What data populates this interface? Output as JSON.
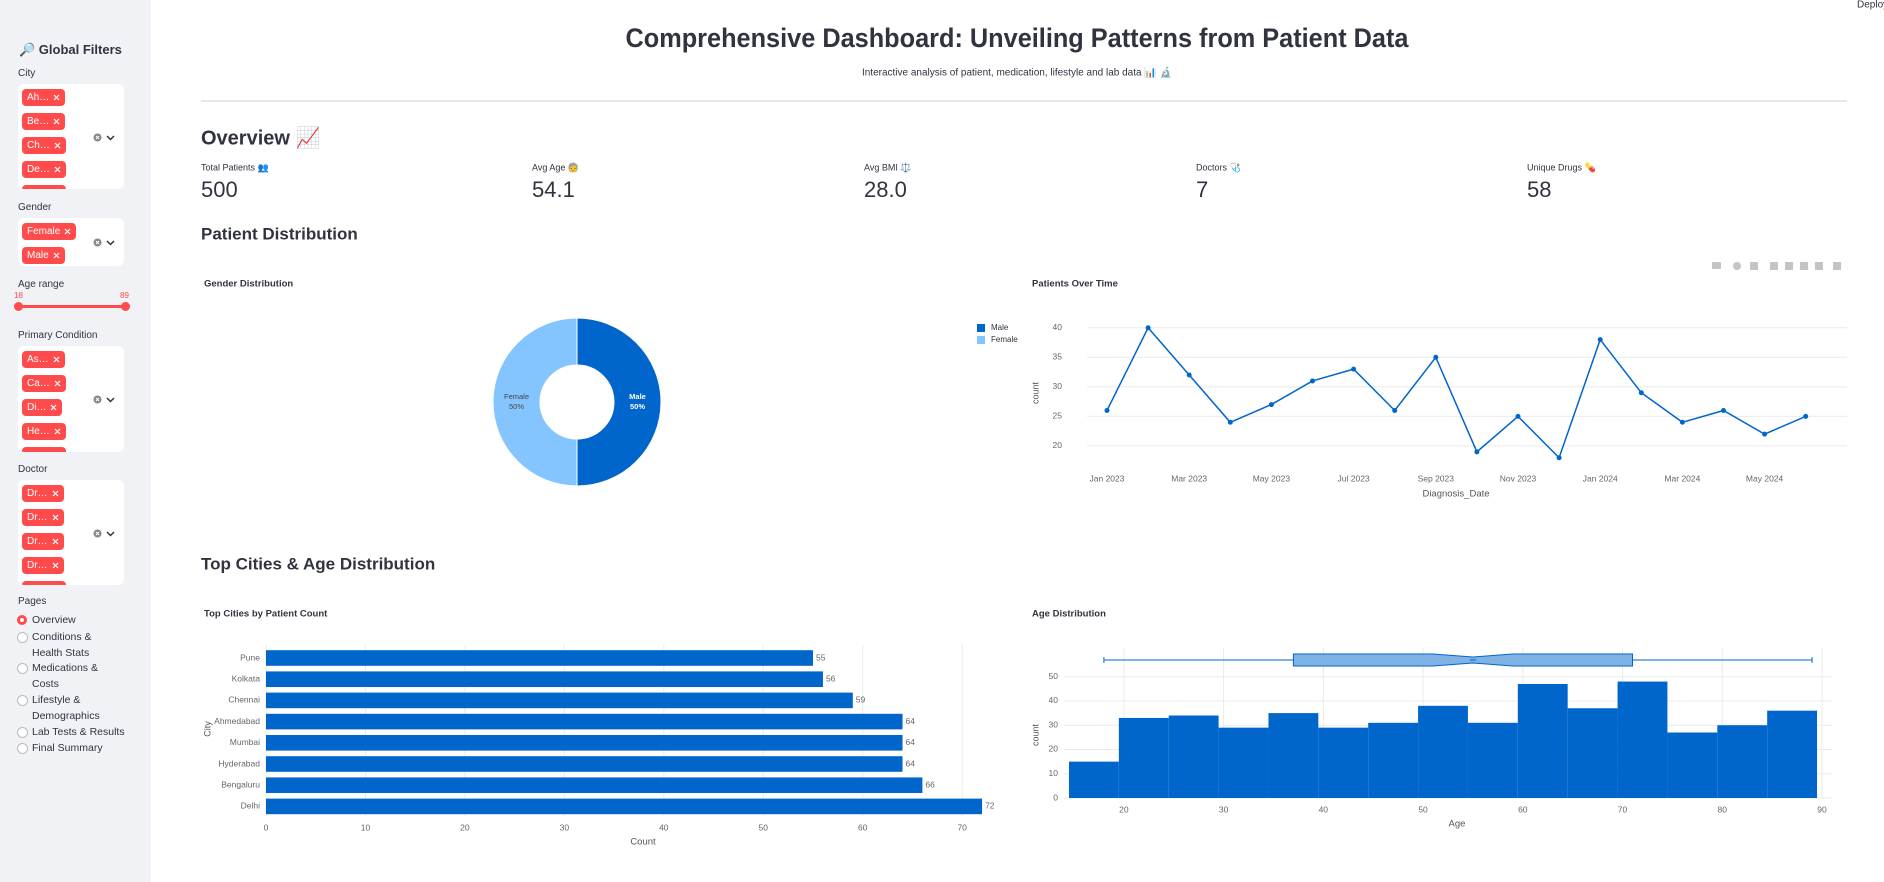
{
  "deploy": "Deploy",
  "sidebar": {
    "title": "🔎 Global Filters",
    "filters": [
      {
        "label": "City",
        "chips": [
          "Ah…",
          "Be…",
          "Ch…",
          "De…"
        ]
      },
      {
        "label": "Gender",
        "chips": [
          "Female",
          "Male"
        ]
      },
      {
        "label": "Primary Condition",
        "chips": [
          "As…",
          "Ca…",
          "Di…",
          "He…"
        ]
      },
      {
        "label": "Doctor",
        "chips": [
          "Dr…",
          "Dr…",
          "Dr…",
          "Dr…"
        ]
      }
    ],
    "age_range": {
      "label": "Age range",
      "min": 18,
      "max": 89
    },
    "pages": {
      "label": "Pages",
      "options": [
        "Overview",
        "Conditions & Health Stats",
        "Medications & Costs",
        "Lifestyle & Demographics",
        "Lab Tests & Results",
        "Final Summary"
      ],
      "selected": 0
    }
  },
  "header": {
    "title": "Comprehensive Dashboard: Unveiling Patterns from Patient Data",
    "subtitle": "Interactive analysis of patient, medication, lifestyle and lab data 📊 🔬"
  },
  "overview": {
    "heading": "Overview 📈",
    "metrics": [
      {
        "label": "Total Patients 👥",
        "value": "500"
      },
      {
        "label": "Avg Age 🧓",
        "value": "54.1"
      },
      {
        "label": "Avg BMI ⚖️",
        "value": "28.0"
      },
      {
        "label": "Doctors 🩺",
        "value": "7"
      },
      {
        "label": "Unique Drugs 💊",
        "value": "58"
      }
    ]
  },
  "sections": [
    "Patient Distribution",
    "Top Cities & Age Distribution"
  ],
  "chart_data": [
    {
      "type": "pie",
      "donut": true,
      "title": "Gender Distribution",
      "categories": [
        "Male",
        "Female"
      ],
      "values": [
        50,
        50
      ],
      "value_labels": [
        "50%",
        "50%"
      ],
      "colors": [
        "#0066cc",
        "#85c5ff"
      ],
      "legend": "top-right"
    },
    {
      "type": "line",
      "title": "Patients Over Time",
      "x": [
        "2023-01",
        "2023-02",
        "2023-03",
        "2023-04",
        "2023-05",
        "2023-06",
        "2023-07",
        "2023-08",
        "2023-09",
        "2023-10",
        "2023-11",
        "2023-12",
        "2024-01",
        "2024-02",
        "2024-03",
        "2024-04",
        "2024-05",
        "2024-06"
      ],
      "values": [
        26,
        40,
        32,
        24,
        27,
        31,
        33,
        26,
        35,
        19,
        25,
        18,
        38,
        29,
        24,
        26,
        22,
        25
      ],
      "color": "#0066cc",
      "xlabel": "Diagnosis_Date",
      "ylabel": "count",
      "ylim": [
        16.5,
        42.5
      ],
      "yticks": [
        20,
        25,
        30,
        35,
        40
      ],
      "xticks": [
        {
          "value": "2023-01",
          "label": "Jan 2023"
        },
        {
          "value": "2023-03",
          "label": "Mar 2023"
        },
        {
          "value": "2023-05",
          "label": "May 2023"
        },
        {
          "value": "2023-07",
          "label": "Jul 2023"
        },
        {
          "value": "2023-09",
          "label": "Sep 2023"
        },
        {
          "value": "2023-11",
          "label": "Nov 2023"
        },
        {
          "value": "2024-01",
          "label": "Jan 2024"
        },
        {
          "value": "2024-03",
          "label": "Mar 2024"
        },
        {
          "value": "2024-05",
          "label": "May 2024"
        }
      ],
      "grid": true
    },
    {
      "type": "barh",
      "title": "Top Cities by Patient Count",
      "categories": [
        "Pune",
        "Kolkata",
        "Chennai",
        "Ahmedabad",
        "Mumbai",
        "Hyderabad",
        "Bengaluru",
        "Delhi"
      ],
      "values": [
        55,
        56,
        59,
        64,
        64,
        64,
        66,
        72
      ],
      "color": "#0066cc",
      "xlabel": "Count",
      "ylabel": "City",
      "xlim": [
        0,
        73.5
      ],
      "xticks": [
        0,
        10,
        20,
        30,
        40,
        50,
        60,
        70
      ],
      "grid": true
    },
    {
      "type": "histogram",
      "title": "Age Distribution",
      "bins": [
        14.5,
        19.5,
        24.5,
        29.5,
        34.5,
        39.5,
        44.5,
        49.5,
        54.5,
        59.5,
        64.5,
        69.5,
        74.5,
        79.5,
        84.5,
        89.5
      ],
      "counts": [
        15,
        33,
        34,
        29,
        35,
        29,
        31,
        38,
        31,
        47,
        37,
        48,
        27,
        30,
        36
      ],
      "box": {
        "min": 18,
        "q1": 37,
        "median": 55,
        "q3": 71,
        "max": 89
      },
      "color": "#0066cc",
      "box_color": "#7fb2e5",
      "xlabel": "Age",
      "ylabel": "count",
      "xlim": [
        14,
        91
      ],
      "xticks": [
        20,
        30,
        40,
        50,
        60,
        70,
        80,
        90
      ],
      "ylim": [
        0,
        54
      ],
      "yticks": [
        0,
        10,
        20,
        30,
        40,
        50
      ],
      "grid": true
    }
  ]
}
